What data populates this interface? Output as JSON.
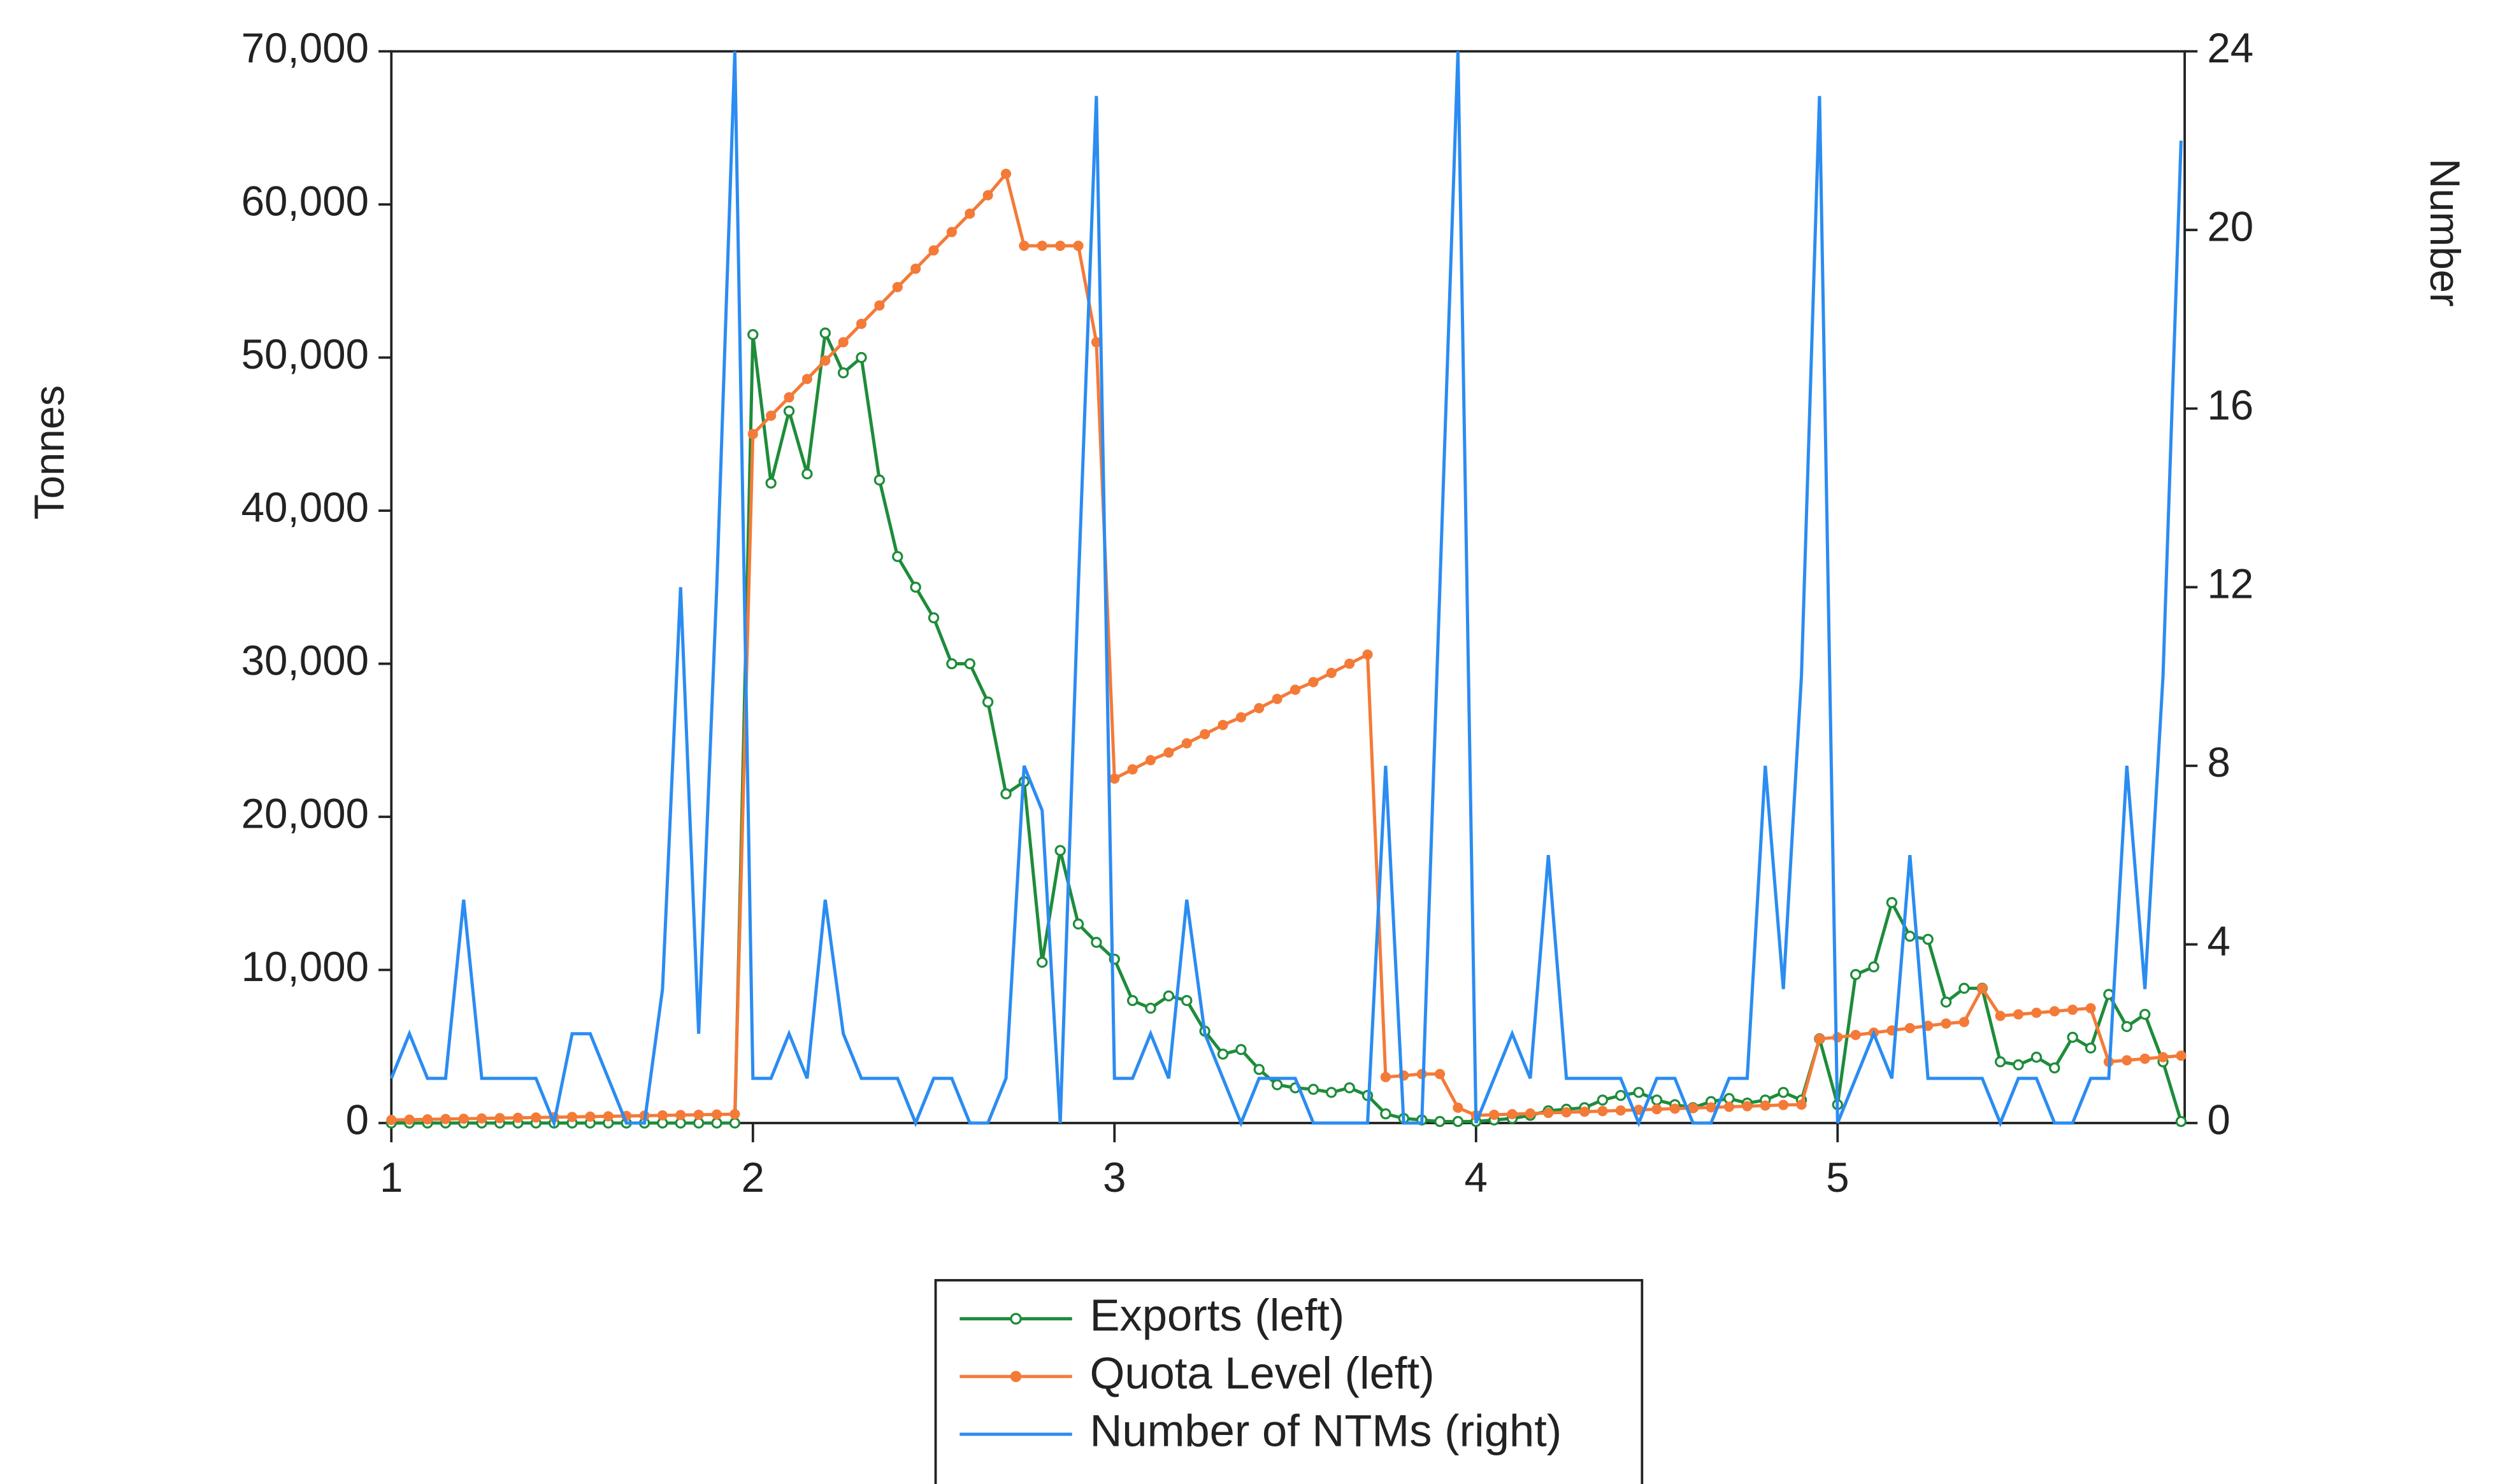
{
  "chart_data": {
    "type": "line",
    "y_label": "Tonnes",
    "y2_label": "Number",
    "x": [
      1,
      1.05,
      1.1,
      1.15,
      1.2,
      1.25,
      1.3,
      1.35,
      1.4,
      1.45,
      1.5,
      1.55,
      1.6,
      1.65,
      1.7,
      1.75,
      1.8,
      1.85,
      1.9,
      1.95,
      2,
      2.05,
      2.1,
      2.15,
      2.2,
      2.25,
      2.3,
      2.35,
      2.4,
      2.45,
      2.5,
      2.55,
      2.6,
      2.65,
      2.7,
      2.75,
      2.8,
      2.85,
      2.9,
      2.95,
      3,
      3.05,
      3.1,
      3.15,
      3.2,
      3.25,
      3.3,
      3.35,
      3.4,
      3.45,
      3.5,
      3.55,
      3.6,
      3.65,
      3.7,
      3.75,
      3.8,
      3.85,
      3.9,
      3.95,
      4,
      4.05,
      4.1,
      4.15,
      4.2,
      4.25,
      4.3,
      4.35,
      4.4,
      4.45,
      4.5,
      4.55,
      4.6,
      4.65,
      4.7,
      4.75,
      4.8,
      4.85,
      4.9,
      4.95,
      5,
      5.05,
      5.1,
      5.15,
      5.2,
      5.25,
      5.3,
      5.35,
      5.4,
      5.45,
      5.5,
      5.55,
      5.6,
      5.65,
      5.7,
      5.75,
      5.8,
      5.85,
      5.9,
      5.95
    ],
    "xlim": [
      1,
      5.96
    ],
    "xticks": [
      1,
      2,
      3,
      4,
      5
    ],
    "ylim": [
      0,
      70000
    ],
    "yticks": [
      0,
      {
        "value": 10000,
        "label": "10,000"
      },
      {
        "value": 20000,
        "label": "20,000"
      },
      {
        "value": 30000,
        "label": "30,000"
      },
      {
        "value": 40000,
        "label": "40,000"
      },
      {
        "value": 50000,
        "label": "50,000"
      },
      {
        "value": 60000,
        "label": "60,000"
      },
      {
        "value": 70000,
        "label": "70,000"
      }
    ],
    "y2lim": [
      0,
      24
    ],
    "y2ticks": [
      0,
      4,
      8,
      12,
      16,
      20,
      24
    ],
    "legend": "bottom",
    "series": [
      {
        "name": "Exports (left)",
        "color": "#1e8c3a",
        "marker": "circle",
        "values": [
          0,
          0,
          0,
          0,
          0,
          0,
          0,
          0,
          0,
          0,
          0,
          0,
          0,
          0,
          0,
          0,
          0,
          0,
          0,
          0,
          51500,
          41800,
          46500,
          42400,
          51600,
          49000,
          50000,
          42000,
          37000,
          35000,
          33000,
          30000,
          30000,
          27500,
          21500,
          22300,
          10500,
          17800,
          13000,
          11800,
          10700,
          8000,
          7500,
          8300,
          8000,
          6000,
          4500,
          4800,
          3500,
          2500,
          2300,
          2200,
          2000,
          2300,
          1800,
          600,
          300,
          200,
          100,
          100,
          100,
          200,
          300,
          500,
          800,
          900,
          1000,
          1500,
          1800,
          2000,
          1500,
          1200,
          1000,
          1400,
          1600,
          1300,
          1500,
          2000,
          1500,
          5500,
          1200,
          9700,
          10200,
          14400,
          12200,
          12000,
          7900,
          8800,
          8800,
          4000,
          3800,
          4300,
          3600,
          5600,
          4900,
          8400,
          6300,
          7100,
          4000,
          100
        ]
      },
      {
        "name": "Quota Level (left)",
        "color": "#f47a38",
        "marker": "dot",
        "values": [
          200,
          220,
          240,
          260,
          280,
          300,
          320,
          340,
          360,
          380,
          400,
          420,
          440,
          460,
          480,
          500,
          520,
          540,
          560,
          580,
          45000,
          46200,
          47400,
          48600,
          49800,
          51000,
          52200,
          53400,
          54600,
          55800,
          57000,
          58200,
          59400,
          60600,
          62000,
          57300,
          57300,
          57300,
          57300,
          51000,
          22500,
          23100,
          23700,
          24200,
          24800,
          25400,
          26000,
          26500,
          27100,
          27700,
          28300,
          28800,
          29400,
          30000,
          30600,
          3000,
          3100,
          3200,
          3200,
          1000,
          500,
          540,
          580,
          620,
          660,
          700,
          740,
          780,
          820,
          860,
          900,
          940,
          980,
          1020,
          1060,
          1100,
          1140,
          1180,
          1200,
          5500,
          5600,
          5750,
          5900,
          6050,
          6200,
          6350,
          6500,
          6600,
          8800,
          7000,
          7100,
          7200,
          7300,
          7400,
          7500,
          4000,
          4100,
          4200,
          4300,
          4400
        ]
      },
      {
        "name": "Number of NTMs (right)",
        "color": "#2b8cf2",
        "axis": "y2",
        "values": [
          1,
          2,
          1,
          1,
          5,
          1,
          1,
          1,
          1,
          0,
          2,
          2,
          1,
          0,
          0,
          3,
          12,
          2,
          12,
          24,
          1,
          1,
          2,
          1,
          5,
          2,
          1,
          1,
          1,
          0,
          1,
          1,
          0,
          0,
          1,
          8,
          7,
          0,
          12,
          23,
          1,
          1,
          2,
          1,
          5,
          2,
          1,
          0,
          1,
          1,
          1,
          0,
          0,
          0,
          0,
          8,
          0,
          0,
          12,
          24,
          0,
          1,
          2,
          1,
          6,
          1,
          1,
          1,
          1,
          0,
          1,
          1,
          0,
          0,
          1,
          1,
          8,
          3,
          10,
          23,
          0,
          1,
          2,
          1,
          6,
          1,
          1,
          1,
          1,
          0,
          1,
          1,
          0,
          0,
          1,
          1,
          8,
          3,
          10,
          22
        ]
      }
    ]
  }
}
